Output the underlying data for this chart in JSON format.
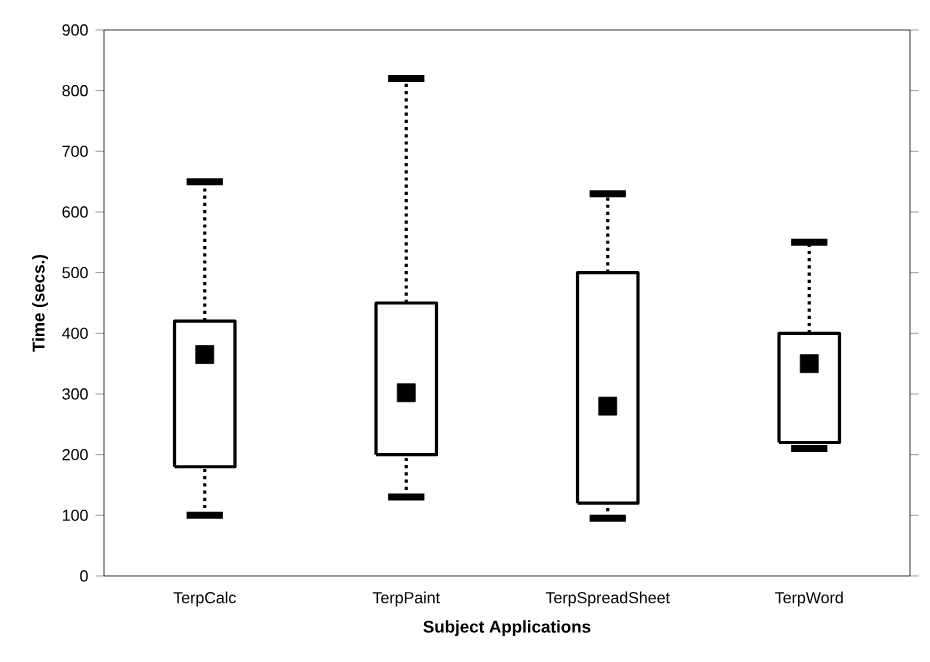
{
  "chart_data": {
    "type": "box",
    "xlabel": "Subject Applications",
    "ylabel": "Time (secs.)",
    "categories": [
      "TerpCalc",
      "TerpPaint",
      "TerpSpreadSheet",
      "TerpWord"
    ],
    "boxes": [
      {
        "low": 100,
        "q1": 180,
        "median": 365,
        "q3": 420,
        "high": 650
      },
      {
        "low": 130,
        "q1": 200,
        "median": 302,
        "q3": 450,
        "high": 820
      },
      {
        "low": 95,
        "q1": 120,
        "median": 280,
        "q3": 500,
        "high": 630
      },
      {
        "low": 210,
        "q1": 220,
        "median": 350,
        "q3": 400,
        "high": 550
      }
    ],
    "ylim": [
      0,
      900
    ],
    "yticks": [
      0,
      100,
      200,
      300,
      400,
      500,
      600,
      700,
      800,
      900
    ],
    "marker": "square"
  }
}
